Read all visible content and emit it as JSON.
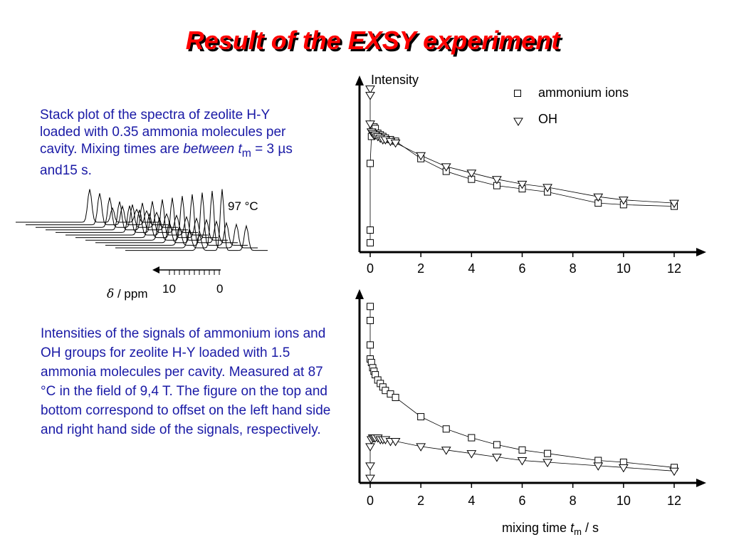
{
  "title": "Result of the EXSY experiment",
  "caption_top": {
    "pre": "Stack plot of the spectra of zeolite H-Y loaded with 0.35 ammonia molecules per cavity. Mixing times are ",
    "between": "between",
    "t": "t",
    "m": "m",
    "post": " = 3 µs and15 s."
  },
  "caption_bottom": "Intensities of the signals of ammonium ions and OH groups for zeolite H-Y loaded with 1.5 ammonia molecules per cavity. Measured at 87 °C in the field of 9,4 T. The figure on the top and bottom correspond to offset on the left hand side and right hand side of the signals, respectively.",
  "stack_plot": {
    "temperature_label": "97 °C",
    "axis_symbol": "δ",
    "axis_unit": " / ppm",
    "tick_labels": [
      "10",
      "0"
    ]
  },
  "chart_data": [
    {
      "type": "scatter",
      "ylabel": "Intensity",
      "xlabel": "",
      "xlim": [
        0,
        12
      ],
      "xticks": [
        0,
        2,
        4,
        6,
        8,
        10,
        12
      ],
      "legend_placement": "top-right",
      "series": [
        {
          "name": "ammonium ions",
          "marker": "square",
          "x": [
            0,
            0,
            0,
            0.05,
            0.1,
            0.15,
            0.2,
            0.3,
            0.4,
            0.5,
            0.6,
            0.8,
            1,
            2,
            3,
            4,
            5,
            6,
            7,
            9,
            10,
            12
          ],
          "y": [
            0.05,
            0.13,
            0.55,
            0.72,
            0.77,
            0.78,
            0.77,
            0.74,
            0.73,
            0.72,
            0.71,
            0.7,
            0.69,
            0.58,
            0.5,
            0.45,
            0.41,
            0.39,
            0.37,
            0.3,
            0.29,
            0.28
          ]
        },
        {
          "name": "OH",
          "marker": "triangle-down",
          "x": [
            0,
            0,
            0,
            0.05,
            0.1,
            0.15,
            0.2,
            0.3,
            0.4,
            0.5,
            0.6,
            0.8,
            1,
            2,
            3,
            4,
            5,
            6,
            7,
            9,
            10,
            12
          ],
          "y": [
            1.02,
            0.98,
            0.8,
            0.75,
            0.74,
            0.73,
            0.73,
            0.72,
            0.71,
            0.7,
            0.7,
            0.69,
            0.68,
            0.6,
            0.53,
            0.49,
            0.45,
            0.42,
            0.4,
            0.34,
            0.32,
            0.3
          ]
        }
      ]
    },
    {
      "type": "scatter",
      "xlabel": "mixing time tₘ / s",
      "xlabel_parts": {
        "pre": "mixing time ",
        "t": "t",
        "m": "m",
        "post": " / s"
      },
      "ylabel": "",
      "xlim": [
        0,
        12
      ],
      "xticks": [
        0,
        2,
        4,
        6,
        8,
        10,
        12
      ],
      "series": [
        {
          "name": "ammonium ions",
          "marker": "square",
          "x": [
            0,
            0,
            0,
            0,
            0.05,
            0.1,
            0.15,
            0.2,
            0.3,
            0.4,
            0.5,
            0.6,
            0.8,
            1,
            2,
            3,
            4,
            5,
            6,
            7,
            9,
            10,
            12
          ],
          "y": [
            1.0,
            0.92,
            0.78,
            0.7,
            0.68,
            0.65,
            0.63,
            0.61,
            0.58,
            0.56,
            0.54,
            0.52,
            0.5,
            0.48,
            0.37,
            0.3,
            0.25,
            0.21,
            0.18,
            0.16,
            0.12,
            0.11,
            0.08
          ]
        },
        {
          "name": "OH",
          "marker": "triangle-down",
          "x": [
            0,
            0,
            0,
            0.05,
            0.1,
            0.15,
            0.2,
            0.3,
            0.4,
            0.5,
            0.6,
            0.8,
            1,
            2,
            3,
            4,
            5,
            6,
            7,
            9,
            10,
            12
          ],
          "y": [
            0.02,
            0.09,
            0.2,
            0.24,
            0.25,
            0.25,
            0.25,
            0.25,
            0.24,
            0.24,
            0.24,
            0.23,
            0.23,
            0.2,
            0.18,
            0.16,
            0.14,
            0.12,
            0.11,
            0.09,
            0.08,
            0.06
          ]
        }
      ]
    }
  ]
}
